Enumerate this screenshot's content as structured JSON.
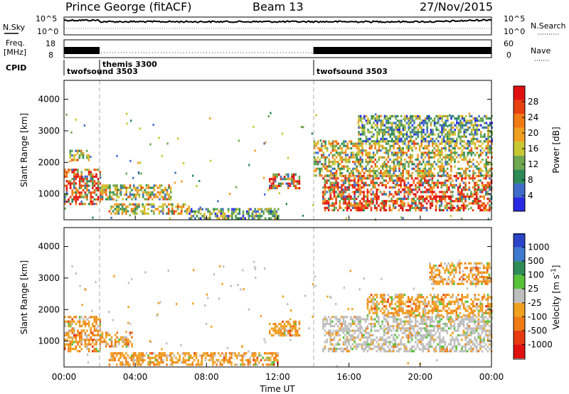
{
  "header": {
    "title": "Prince George (fitACF)",
    "beam": "Beam 13",
    "date": "27/Nov/2015"
  },
  "noise_panel": {
    "left_label": "N.Sky",
    "right_label": "N.Search",
    "left_ticks": [
      "10^5",
      "10^0"
    ],
    "right_ticks": [
      "10^5",
      "10^0"
    ]
  },
  "freq_panel": {
    "left_label_1": "Freq.",
    "left_label_2": "[MHz]",
    "right_label": "Nave",
    "left_ticks": [
      "18",
      "8"
    ],
    "right_ticks": [
      "60",
      "0"
    ]
  },
  "cpid": {
    "label": "CPID",
    "segments": [
      {
        "name": "twofsound 3503",
        "start_h": 0
      },
      {
        "name": "themis 3300",
        "start_h": 2
      },
      {
        "name": "twofsound 3503",
        "start_h": 14
      }
    ]
  },
  "x_axis": {
    "label": "Time UT",
    "ticks": [
      "00:00",
      "04:00",
      "08:00",
      "12:00",
      "16:00",
      "20:00",
      "00:00"
    ],
    "range_h": [
      0,
      24
    ]
  },
  "chart_data": [
    {
      "type": "heatmap",
      "name": "power",
      "ylabel": "Slant Range [km]",
      "ylim": [
        180,
        4600
      ],
      "yticks": [
        1000,
        2000,
        3000,
        4000
      ],
      "colorbar": {
        "label": "Power [dB]",
        "range": [
          0,
          32
        ],
        "ticks": [
          4,
          8,
          12,
          16,
          20,
          24,
          28
        ],
        "colors": [
          "#2a2ae6",
          "#3f6cc9",
          "#2e8b57",
          "#6fa84f",
          "#c8c832",
          "#f0a020",
          "#f07a14",
          "#e84010",
          "#e01010"
        ]
      },
      "regions": [
        {
          "t0": 0.0,
          "t1": 2.0,
          "r0": 700,
          "r1": 1800,
          "level": "high"
        },
        {
          "t0": 0.3,
          "t1": 1.4,
          "r0": 2050,
          "r1": 2400,
          "level": "mid"
        },
        {
          "t0": 2.0,
          "t1": 6.0,
          "r0": 850,
          "r1": 1300,
          "level": "mid"
        },
        {
          "t0": 2.5,
          "t1": 7.0,
          "r0": 350,
          "r1": 700,
          "level": "mid"
        },
        {
          "t0": 7.0,
          "t1": 12.0,
          "r0": 250,
          "r1": 550,
          "level": "low"
        },
        {
          "t0": 11.5,
          "t1": 13.2,
          "r0": 1150,
          "r1": 1650,
          "level": "high"
        },
        {
          "t0": 14.5,
          "t1": 24.0,
          "r0": 500,
          "r1": 1600,
          "level": "high"
        },
        {
          "t0": 14.0,
          "t1": 24.0,
          "r0": 1600,
          "r1": 2700,
          "level": "mid"
        },
        {
          "t0": 16.5,
          "t1": 24.0,
          "r0": 2700,
          "r1": 3500,
          "level": "low"
        }
      ]
    },
    {
      "type": "heatmap",
      "name": "velocity",
      "ylabel": "Slant Range [km]",
      "ylim": [
        180,
        4600
      ],
      "yticks": [
        1000,
        2000,
        3000,
        4000
      ],
      "colorbar": {
        "label": "Velocity [m s-1]",
        "tick_labels": [
          "1000",
          "500",
          "100",
          "25",
          "-25",
          "-100",
          "-500",
          "-1000"
        ],
        "colors": [
          "#2b45c9",
          "#3f7ad0",
          "#2e8b57",
          "#58c23a",
          "#bebebe",
          "#f0a020",
          "#f07a14",
          "#e83a10",
          "#e01010"
        ]
      },
      "regions": [
        {
          "t0": 0.0,
          "t1": 2.0,
          "r0": 700,
          "r1": 1800,
          "level": "neg"
        },
        {
          "t0": 2.0,
          "t1": 3.8,
          "r0": 850,
          "r1": 1300,
          "level": "neg"
        },
        {
          "t0": 2.5,
          "t1": 12.0,
          "r0": 280,
          "r1": 650,
          "level": "neg"
        },
        {
          "t0": 11.5,
          "t1": 13.2,
          "r0": 1150,
          "r1": 1650,
          "level": "neg"
        },
        {
          "t0": 14.5,
          "t1": 24.0,
          "r0": 700,
          "r1": 1800,
          "level": "zero"
        },
        {
          "t0": 17.0,
          "t1": 24.0,
          "r0": 1800,
          "r1": 2500,
          "level": "neg"
        },
        {
          "t0": 20.5,
          "t1": 24.0,
          "r0": 2800,
          "r1": 3500,
          "level": "neg"
        }
      ]
    }
  ]
}
